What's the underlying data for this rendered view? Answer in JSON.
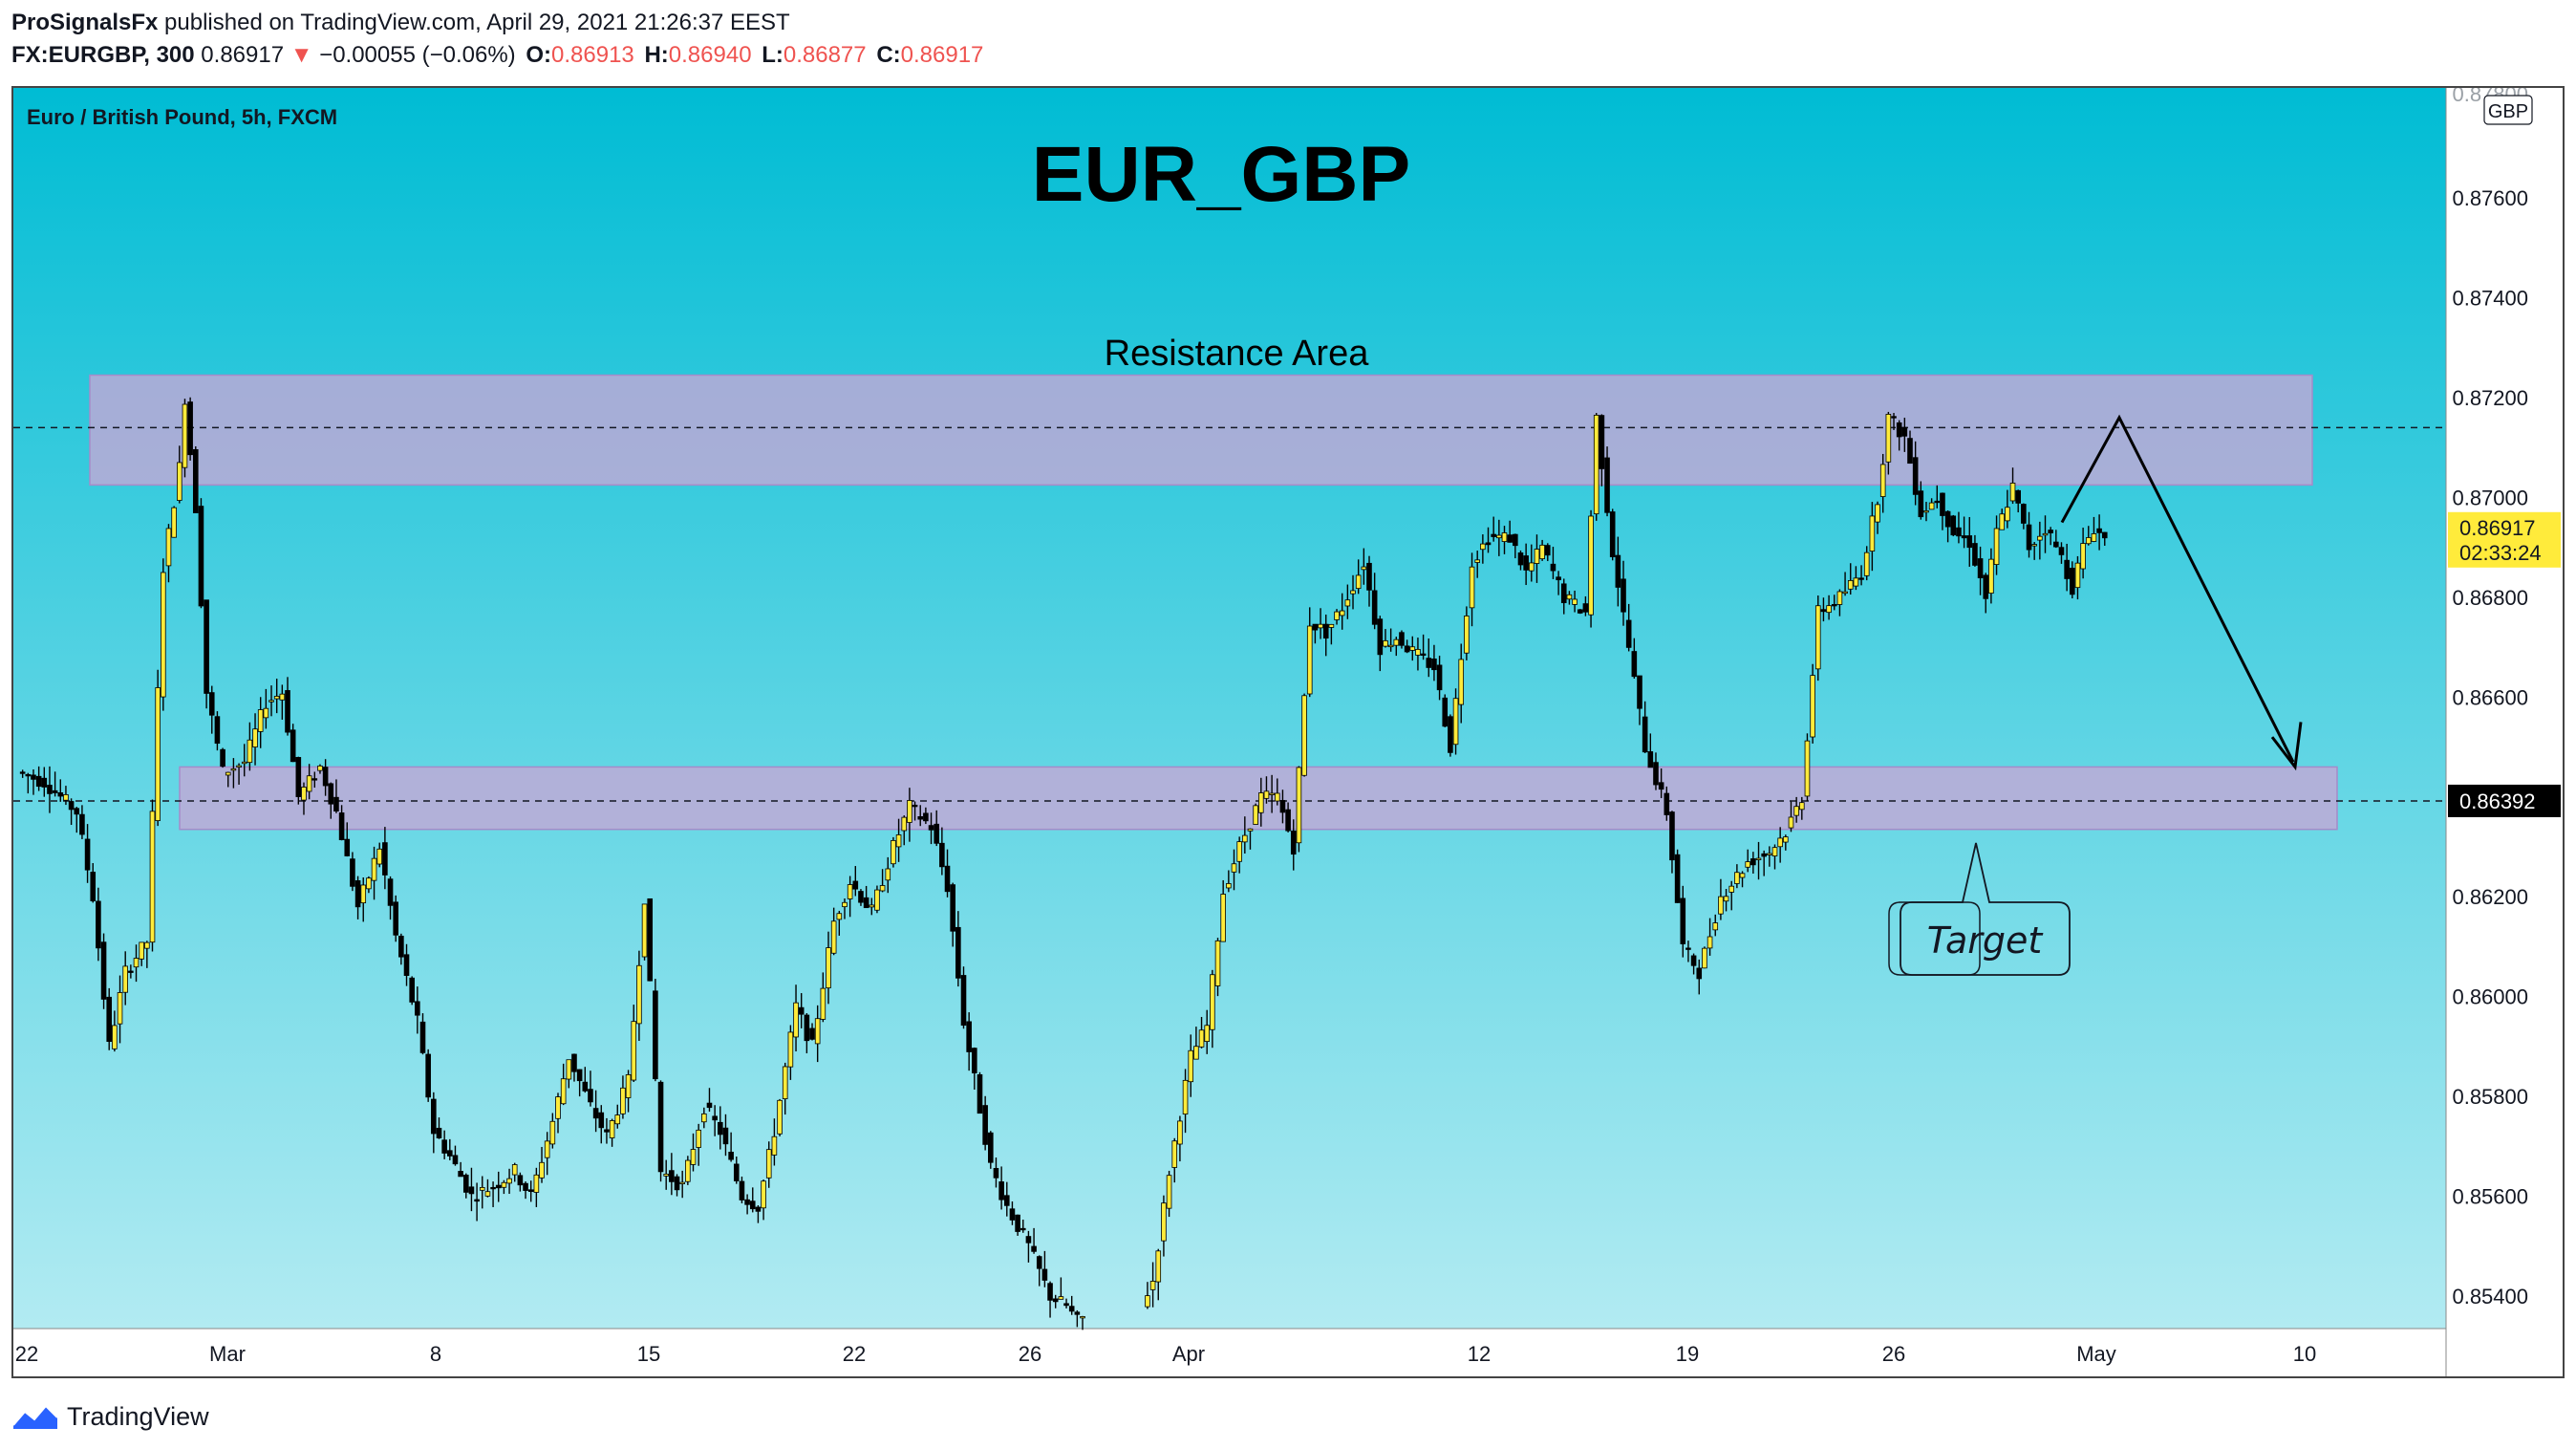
{
  "header": {
    "publisher": "ProSignalsFx",
    "published_text": " published on TradingView.com, April 29, 2021 21:26:37 EEST",
    "symbol": "FX:EURGBP, 300",
    "last": "0.86917",
    "change": "−0.00055 (−0.06%)",
    "open_label": "O:",
    "open": "0.86913",
    "high_label": "H:",
    "high": "0.86940",
    "low_label": "L:",
    "low": "0.86877",
    "close_label": "C:",
    "close": "0.86917"
  },
  "chart_title": "EUR_GBP",
  "resistance_label": "Resistance Area",
  "target_label": "Target",
  "branding": "TradingView",
  "chart_data": {
    "type": "candlestick",
    "subtitle": "Euro / British Pound, 5h, FXCM",
    "currency": "GBP",
    "ylim": [
      0.8532,
      0.88
    ],
    "y_ticks": [
      "0.87600",
      "0.87400",
      "0.87200",
      "0.87000",
      "0.86800",
      "0.86600",
      "0.86200",
      "0.86000",
      "0.85800",
      "0.85600",
      "0.85400"
    ],
    "y_top_partial": "0.87800",
    "x_ticks": [
      "22",
      "Mar",
      "8",
      "15",
      "22",
      "26",
      "Apr",
      "12",
      "19",
      "26",
      "May",
      "10"
    ],
    "last_price": "0.86917",
    "countdown": "02:33:24",
    "support_price": "0.86392",
    "resistance_zone": [
      0.87025,
      0.87245
    ],
    "support_zone": [
      0.86335,
      0.8646
    ],
    "resistance_line": 0.8714,
    "support_line": 0.86392,
    "projection": [
      {
        "x": "Apr 30",
        "y": 0.8696
      },
      {
        "x": "May 1",
        "y": 0.8716
      },
      {
        "x": "May 5",
        "y": 0.8645
      }
    ],
    "colors": {
      "bull": "#ffeb3b",
      "bear": "#000000",
      "zone": "#c4a8d6",
      "bg_top": "#00bcd4",
      "bg_bottom": "#b2ebf2",
      "price_tag": "#ffeb3b",
      "support_tag": "#000000"
    },
    "candles_note": "5h bars Feb 22 – Apr 29 2021; anchor closes below",
    "anchors": [
      [
        0,
        0.8645
      ],
      [
        5,
        0.8643
      ],
      [
        11,
        0.8637
      ],
      [
        14,
        0.862
      ],
      [
        17,
        0.859
      ],
      [
        20,
        0.8605
      ],
      [
        24,
        0.8611
      ],
      [
        27,
        0.8686
      ],
      [
        30,
        0.8706
      ],
      [
        31,
        0.872
      ],
      [
        33,
        0.8698
      ],
      [
        35,
        0.8661
      ],
      [
        38,
        0.8645
      ],
      [
        42,
        0.8647
      ],
      [
        46,
        0.8659
      ],
      [
        49,
        0.8661
      ],
      [
        52,
        0.864
      ],
      [
        56,
        0.8646
      ],
      [
        59,
        0.8637
      ],
      [
        63,
        0.8618
      ],
      [
        67,
        0.863
      ],
      [
        70,
        0.8612
      ],
      [
        74,
        0.8595
      ],
      [
        77,
        0.8573
      ],
      [
        80,
        0.8568
      ],
      [
        84,
        0.856
      ],
      [
        88,
        0.8562
      ],
      [
        92,
        0.8565
      ],
      [
        95,
        0.856
      ],
      [
        99,
        0.8575
      ],
      [
        102,
        0.8588
      ],
      [
        106,
        0.8578
      ],
      [
        109,
        0.8572
      ],
      [
        113,
        0.8583
      ],
      [
        116,
        0.862
      ],
      [
        119,
        0.8565
      ],
      [
        123,
        0.8562
      ],
      [
        127,
        0.8578
      ],
      [
        130,
        0.8573
      ],
      [
        134,
        0.856
      ],
      [
        137,
        0.8558
      ],
      [
        140,
        0.8573
      ],
      [
        144,
        0.8598
      ],
      [
        147,
        0.859
      ],
      [
        151,
        0.8615
      ],
      [
        154,
        0.8623
      ],
      [
        158,
        0.8617
      ],
      [
        162,
        0.863
      ],
      [
        165,
        0.8638
      ],
      [
        169,
        0.8634
      ],
      [
        172,
        0.8622
      ],
      [
        175,
        0.8595
      ],
      [
        180,
        0.8566
      ],
      [
        183,
        0.8558
      ],
      [
        187,
        0.855
      ],
      [
        191,
        0.854
      ],
      [
        194,
        0.8538
      ],
      [
        196,
        0.8535
      ],
      [
        201,
        0.8538
      ],
      [
        205,
        0.8532
      ],
      [
        210,
        0.8543
      ],
      [
        213,
        0.8565
      ],
      [
        217,
        0.8588
      ],
      [
        220,
        0.8594
      ],
      [
        223,
        0.8621
      ],
      [
        226,
        0.863
      ],
      [
        230,
        0.864
      ],
      [
        233,
        0.864
      ],
      [
        236,
        0.863
      ],
      [
        239,
        0.8675
      ],
      [
        242,
        0.8673
      ],
      [
        245,
        0.8678
      ],
      [
        249,
        0.8687
      ],
      [
        252,
        0.867
      ],
      [
        255,
        0.8672
      ],
      [
        258,
        0.8669
      ],
      [
        262,
        0.8666
      ],
      [
        265,
        0.865
      ],
      [
        269,
        0.8687
      ],
      [
        272,
        0.8692
      ],
      [
        276,
        0.8692
      ],
      [
        279,
        0.8685
      ],
      [
        282,
        0.869
      ],
      [
        286,
        0.868
      ],
      [
        290,
        0.8677
      ],
      [
        292,
        0.8716
      ],
      [
        295,
        0.8689
      ],
      [
        298,
        0.867
      ],
      [
        301,
        0.865
      ],
      [
        305,
        0.8637
      ],
      [
        308,
        0.861
      ],
      [
        311,
        0.8605
      ],
      [
        315,
        0.862
      ],
      [
        320,
        0.8627
      ],
      [
        324,
        0.8629
      ],
      [
        327,
        0.8633
      ],
      [
        330,
        0.864
      ],
      [
        333,
        0.8677
      ],
      [
        337,
        0.868
      ],
      [
        341,
        0.8685
      ],
      [
        344,
        0.87
      ],
      [
        346,
        0.8716
      ],
      [
        349,
        0.8712
      ],
      [
        352,
        0.8697
      ],
      [
        355,
        0.87
      ],
      [
        358,
        0.8693
      ],
      [
        361,
        0.8691
      ],
      [
        364,
        0.868
      ],
      [
        366,
        0.8693
      ],
      [
        369,
        0.8702
      ],
      [
        372,
        0.869
      ],
      [
        375,
        0.8694
      ],
      [
        378,
        0.8688
      ],
      [
        380,
        0.8682
      ],
      [
        382,
        0.869
      ],
      [
        384,
        0.8694
      ],
      [
        386,
        0.86917
      ]
    ]
  }
}
